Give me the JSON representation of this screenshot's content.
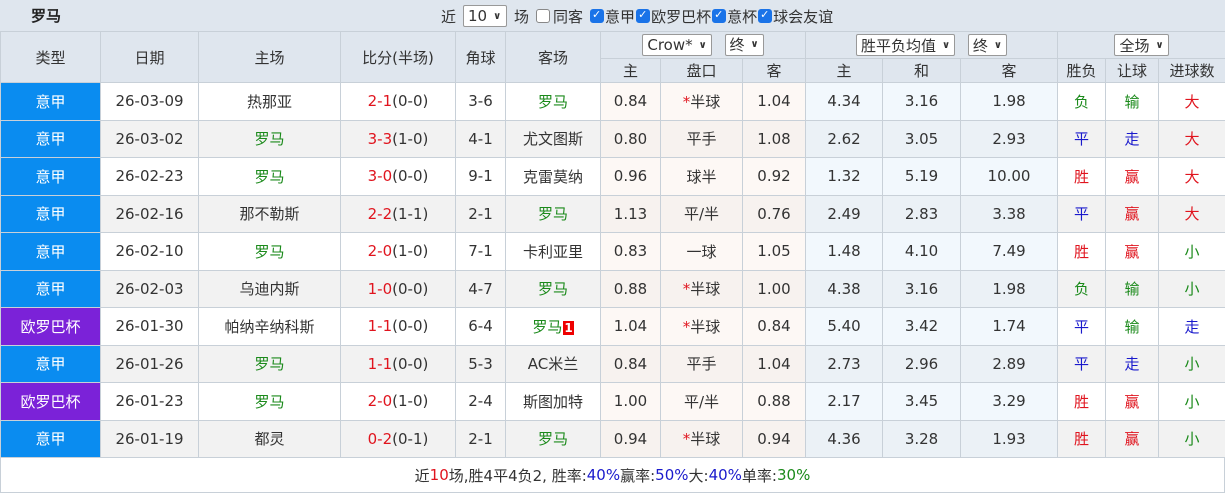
{
  "team": "罗马",
  "filters": {
    "prefix": "近",
    "count": "10",
    "suffix": "场",
    "same_away": "同客",
    "same_away_checked": false,
    "leagues": [
      {
        "label": "意甲",
        "checked": true
      },
      {
        "label": "欧罗巴杯",
        "checked": true
      },
      {
        "label": "意杯",
        "checked": true
      },
      {
        "label": "球会友谊",
        "checked": true
      }
    ]
  },
  "headers": {
    "type": "类型",
    "date": "日期",
    "home": "主场",
    "score": "比分(半场)",
    "corner": "角球",
    "away": "客场",
    "ah_company": "Crow*",
    "ah_stage": "终",
    "eu_company": "胜平负均值",
    "eu_stage": "终",
    "scope": "全场",
    "ah_home": "主",
    "ah_line": "盘口",
    "ah_away": "客",
    "eu_home": "主",
    "eu_draw": "和",
    "eu_away": "客",
    "res": "胜负",
    "hcp": "让球",
    "goals": "进球数"
  },
  "colors": {
    "serie_a": "#0a8cf0",
    "europa": "#7b22d8",
    "win": "#e0141e",
    "draw": "#1a1acc",
    "loss": "#1b8a1b"
  },
  "rows": [
    {
      "type": "意甲",
      "tc": "serie_a",
      "date": "26-03-09",
      "home": "热那亚",
      "hr": false,
      "score": "2-1",
      "half": "(0-0)",
      "corner": "3-6",
      "away": "罗马",
      "ar": true,
      "card": "",
      "ah": [
        "0.84",
        "*半球",
        "1.04"
      ],
      "eu": [
        "4.34",
        "3.16",
        "1.98"
      ],
      "res": "负",
      "rc": "green",
      "hcp": "输",
      "hc": "green",
      "goals": "大",
      "gc": "red"
    },
    {
      "type": "意甲",
      "tc": "serie_a",
      "date": "26-03-02",
      "home": "罗马",
      "hr": true,
      "score": "3-3",
      "half": "(1-0)",
      "corner": "4-1",
      "away": "尤文图斯",
      "ar": false,
      "card": "",
      "ah": [
        "0.80",
        "平手",
        "1.08"
      ],
      "eu": [
        "2.62",
        "3.05",
        "2.93"
      ],
      "res": "平",
      "rc": "blue",
      "hcp": "走",
      "hc": "blue",
      "goals": "大",
      "gc": "red"
    },
    {
      "type": "意甲",
      "tc": "serie_a",
      "date": "26-02-23",
      "home": "罗马",
      "hr": true,
      "score": "3-0",
      "half": "(0-0)",
      "corner": "9-1",
      "away": "克雷莫纳",
      "ar": false,
      "card": "",
      "ah": [
        "0.96",
        "球半",
        "0.92"
      ],
      "eu": [
        "1.32",
        "5.19",
        "10.00"
      ],
      "res": "胜",
      "rc": "red",
      "hcp": "赢",
      "hc": "red",
      "goals": "大",
      "gc": "red"
    },
    {
      "type": "意甲",
      "tc": "serie_a",
      "date": "26-02-16",
      "home": "那不勒斯",
      "hr": false,
      "score": "2-2",
      "half": "(1-1)",
      "corner": "2-1",
      "away": "罗马",
      "ar": true,
      "card": "",
      "ah": [
        "1.13",
        "平/半",
        "0.76"
      ],
      "eu": [
        "2.49",
        "2.83",
        "3.38"
      ],
      "res": "平",
      "rc": "blue",
      "hcp": "赢",
      "hc": "red",
      "goals": "大",
      "gc": "red"
    },
    {
      "type": "意甲",
      "tc": "serie_a",
      "date": "26-02-10",
      "home": "罗马",
      "hr": true,
      "score": "2-0",
      "half": "(1-0)",
      "corner": "7-1",
      "away": "卡利亚里",
      "ar": false,
      "card": "",
      "ah": [
        "0.83",
        "一球",
        "1.05"
      ],
      "eu": [
        "1.48",
        "4.10",
        "7.49"
      ],
      "res": "胜",
      "rc": "red",
      "hcp": "赢",
      "hc": "red",
      "goals": "小",
      "gc": "green"
    },
    {
      "type": "意甲",
      "tc": "serie_a",
      "date": "26-02-03",
      "home": "乌迪内斯",
      "hr": false,
      "score": "1-0",
      "half": "(0-0)",
      "corner": "4-7",
      "away": "罗马",
      "ar": true,
      "card": "",
      "ah": [
        "0.88",
        "*半球",
        "1.00"
      ],
      "eu": [
        "4.38",
        "3.16",
        "1.98"
      ],
      "res": "负",
      "rc": "green",
      "hcp": "输",
      "hc": "green",
      "goals": "小",
      "gc": "green"
    },
    {
      "type": "欧罗巴杯",
      "tc": "europa",
      "date": "26-01-30",
      "home": "帕纳辛纳科斯",
      "hr": false,
      "score": "1-1",
      "half": "(0-0)",
      "corner": "6-4",
      "away": "罗马",
      "ar": true,
      "card": "1",
      "ah": [
        "1.04",
        "*半球",
        "0.84"
      ],
      "eu": [
        "5.40",
        "3.42",
        "1.74"
      ],
      "res": "平",
      "rc": "blue",
      "hcp": "输",
      "hc": "green",
      "goals": "走",
      "gc": "blue"
    },
    {
      "type": "意甲",
      "tc": "serie_a",
      "date": "26-01-26",
      "home": "罗马",
      "hr": true,
      "score": "1-1",
      "half": "(0-0)",
      "corner": "5-3",
      "away": "AC米兰",
      "ar": false,
      "card": "",
      "ah": [
        "0.84",
        "平手",
        "1.04"
      ],
      "eu": [
        "2.73",
        "2.96",
        "2.89"
      ],
      "res": "平",
      "rc": "blue",
      "hcp": "走",
      "hc": "blue",
      "goals": "小",
      "gc": "green"
    },
    {
      "type": "欧罗巴杯",
      "tc": "europa",
      "date": "26-01-23",
      "home": "罗马",
      "hr": true,
      "score": "2-0",
      "half": "(1-0)",
      "corner": "2-4",
      "away": "斯图加特",
      "ar": false,
      "card": "",
      "ah": [
        "1.00",
        "平/半",
        "0.88"
      ],
      "eu": [
        "2.17",
        "3.45",
        "3.29"
      ],
      "res": "胜",
      "rc": "red",
      "hcp": "赢",
      "hc": "red",
      "goals": "小",
      "gc": "green"
    },
    {
      "type": "意甲",
      "tc": "serie_a",
      "date": "26-01-19",
      "home": "都灵",
      "hr": false,
      "score": "0-2",
      "half": "(0-1)",
      "corner": "2-1",
      "away": "罗马",
      "ar": true,
      "card": "",
      "ah": [
        "0.94",
        "*半球",
        "0.94"
      ],
      "eu": [
        "4.36",
        "3.28",
        "1.93"
      ],
      "res": "胜",
      "rc": "red",
      "hcp": "赢",
      "hc": "red",
      "goals": "小",
      "gc": "green"
    }
  ],
  "summary": {
    "p1": "近",
    "n": "10",
    "p2": "场,胜4平4负2, 胜率:",
    "win_rate": "40%",
    "p3": " 赢率:",
    "cover_rate": "50%",
    "p4": " 大:",
    "over_rate": "40%",
    "p5": " 单率:",
    "odd_rate": "30%"
  }
}
